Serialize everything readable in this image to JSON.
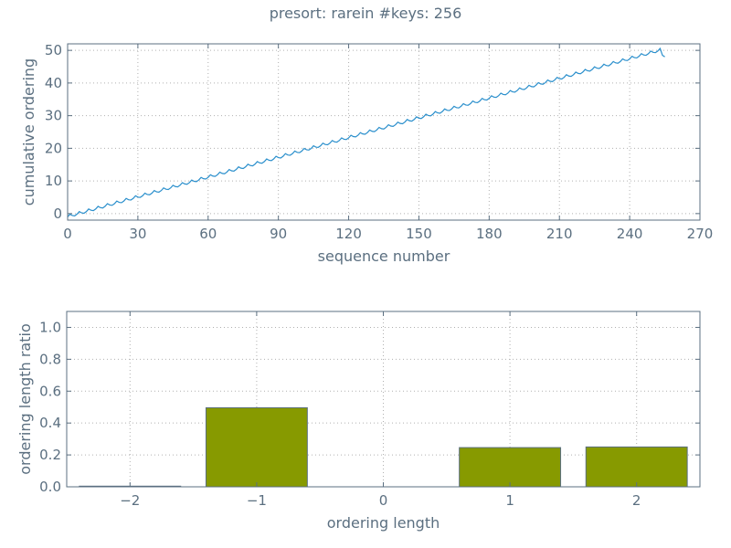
{
  "title": "presort: rarein #keys: 256",
  "colors": {
    "line": "#2a8fcc",
    "bar": "#879a00",
    "bar_edge": "#5b6f80",
    "axis": "#5b6f80",
    "grid": "#b0b0b0",
    "text": "#5b6f80"
  },
  "chart_data": [
    {
      "type": "line",
      "title": "",
      "xlabel": "sequence number",
      "ylabel": "cumulative ordering",
      "xlim": [
        0,
        270
      ],
      "ylim": [
        -2,
        52
      ],
      "xticks": [
        0,
        30,
        60,
        90,
        120,
        150,
        180,
        210,
        240,
        270
      ],
      "yticks": [
        0,
        10,
        20,
        30,
        40,
        50
      ],
      "grid": true,
      "series": [
        {
          "pattern": "sawtooth: alternating up/down steps trending upward",
          "x_start": 0,
          "x_end": 255,
          "y_start": -1,
          "y_end": 49,
          "y_peak": 50,
          "x_peak": 253,
          "amplitude": 1
        }
      ]
    },
    {
      "type": "bar",
      "title": "",
      "xlabel": "ordering length",
      "ylabel": "ordering length ratio",
      "categories": [
        -2,
        -1,
        0,
        1,
        2
      ],
      "category_labels": [
        "−2",
        "−1",
        "0",
        "1",
        "2"
      ],
      "values": [
        0.004,
        0.496,
        0.0,
        0.246,
        0.25
      ],
      "xlim": [
        -2.5,
        2.5
      ],
      "ylim": [
        0,
        1.1
      ],
      "yticks": [
        0.0,
        0.2,
        0.4,
        0.6,
        0.8,
        1.0
      ],
      "ytick_labels": [
        "0.0",
        "0.2",
        "0.4",
        "0.6",
        "0.8",
        "1.0"
      ],
      "grid": true
    }
  ]
}
